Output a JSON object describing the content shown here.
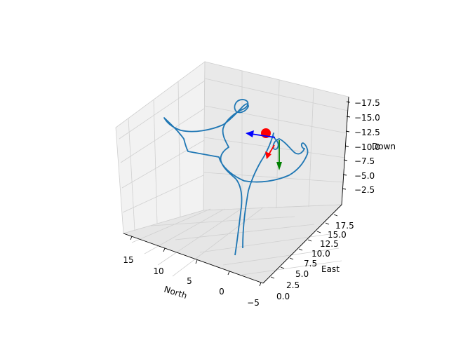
{
  "chart_data": {
    "type": "line3d",
    "title": "",
    "axes": {
      "x": {
        "label": "North",
        "ticks": [
          "15",
          "10",
          "5",
          "0",
          "−5"
        ]
      },
      "y": {
        "label": "East",
        "ticks": [
          "0.0",
          "2.5",
          "5.0",
          "7.5",
          "10.0",
          "12.5",
          "15.0",
          "17.5"
        ]
      },
      "z": {
        "label": "Down",
        "ticks": [
          "−17.5",
          "−15.0",
          "−12.5",
          "−10.0",
          "−7.5",
          "−5.0",
          "−2.5"
        ]
      }
    },
    "series": [
      {
        "color": "#1f77b4",
        "note_only_colors": true
      }
    ],
    "markers": [
      {
        "type": "point",
        "color": "#ff0000"
      },
      {
        "type": "arrow",
        "color": "#0000ff"
      },
      {
        "type": "arrow",
        "color": "#ff0000"
      },
      {
        "type": "arrow",
        "color": "#008000"
      }
    ],
    "colors": {
      "trajectory": "#1f77b4",
      "pane": "#f2f2f2",
      "grid": "#d0d0d0",
      "position_marker": "#ff0000",
      "arrow_x": "#0000ff",
      "arrow_y": "#ff0000",
      "arrow_z": "#008000"
    },
    "grid": true
  }
}
